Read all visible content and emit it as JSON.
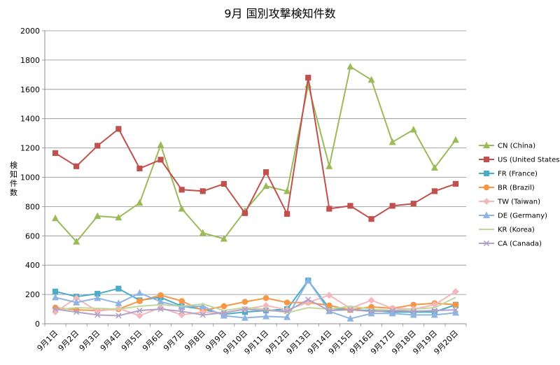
{
  "chart_data": {
    "type": "line",
    "title": "9月 国別攻撃検知件数",
    "ylabel": "検知件数",
    "xlabel": "",
    "ylim": [
      0,
      2000
    ],
    "yticks": [
      0,
      200,
      400,
      600,
      800,
      1000,
      1200,
      1400,
      1600,
      1800,
      2000
    ],
    "grid": "horizontal",
    "legend_position": "right",
    "categories": [
      "9月1日",
      "9月2日",
      "9月3日",
      "9月4日",
      "9月5日",
      "9月6日",
      "9月7日",
      "9月8日",
      "9月9日",
      "9月10日",
      "9月11日",
      "9月12日",
      "9月13日",
      "9月14日",
      "9月15日",
      "9月16日",
      "9月17日",
      "9月18日",
      "9月19日",
      "9月20日"
    ],
    "series": [
      {
        "name": "CN (China)",
        "color": "#9bbb59",
        "marker": "triangle",
        "values": [
          720,
          560,
          735,
          725,
          825,
          1220,
          785,
          620,
          580,
          770,
          940,
          905,
          1630,
          1075,
          1755,
          1665,
          1240,
          1325,
          1065,
          1255
        ]
      },
      {
        "name": "US (United States)",
        "color": "#c0504d",
        "marker": "square",
        "values": [
          1165,
          1075,
          1215,
          1330,
          1060,
          1120,
          915,
          905,
          955,
          755,
          1035,
          750,
          1680,
          785,
          805,
          715,
          805,
          820,
          905,
          955
        ]
      },
      {
        "name": "FR (France)",
        "color": "#4bacc6",
        "marker": "square",
        "values": [
          220,
          185,
          205,
          240,
          160,
          180,
          120,
          100,
          65,
          80,
          90,
          100,
          295,
          105,
          95,
          90,
          80,
          80,
          80,
          130
        ]
      },
      {
        "name": "BR (Brazil)",
        "color": "#f79646",
        "marker": "circle",
        "values": [
          110,
          95,
          90,
          100,
          155,
          195,
          155,
          90,
          120,
          150,
          175,
          145,
          145,
          125,
          95,
          115,
          105,
          130,
          140,
          130
        ]
      },
      {
        "name": "TW (Taiwan)",
        "color": "#f2b8bc",
        "marker": "diamond",
        "values": [
          80,
          175,
          85,
          105,
          55,
          110,
          60,
          80,
          75,
          100,
          125,
          95,
          145,
          195,
          105,
          160,
          105,
          100,
          130,
          220
        ]
      },
      {
        "name": "DE (Germany)",
        "color": "#8eb4e3",
        "marker": "triangle",
        "values": [
          180,
          145,
          175,
          140,
          210,
          150,
          115,
          120,
          55,
          40,
          50,
          45,
          295,
          85,
          35,
          70,
          70,
          60,
          60,
          75
        ]
      },
      {
        "name": "KR (Korea)",
        "color": "#c3d69b",
        "marker": "none",
        "values": [
          95,
          110,
          105,
          100,
          120,
          130,
          120,
          135,
          90,
          110,
          100,
          75,
          110,
          100,
          120,
          100,
          90,
          100,
          110,
          180
        ]
      },
      {
        "name": "CA (Canada)",
        "color": "#b3a2c7",
        "marker": "x",
        "values": [
          100,
          80,
          60,
          55,
          90,
          100,
          85,
          60,
          75,
          100,
          90,
          85,
          165,
          90,
          95,
          85,
          90,
          85,
          90,
          95
        ]
      }
    ]
  }
}
